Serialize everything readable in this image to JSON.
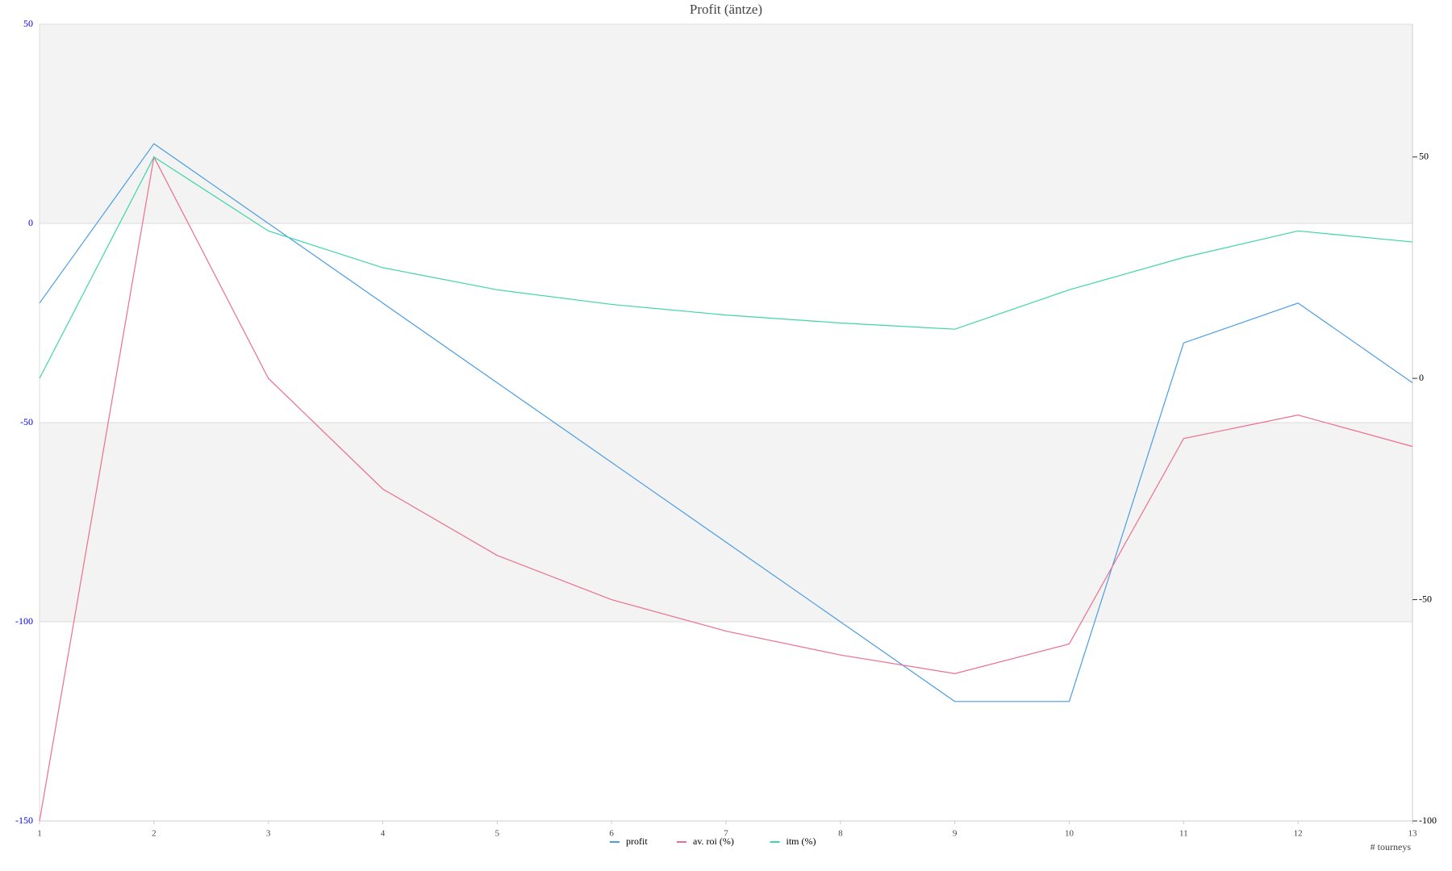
{
  "chart_data": {
    "type": "line",
    "title": "Profit  (äntze)",
    "xlabel": "# tourneys",
    "x": [
      1,
      2,
      3,
      4,
      5,
      6,
      7,
      8,
      9,
      10,
      11,
      12,
      13
    ],
    "xlim": [
      1,
      13
    ],
    "xticks": [
      1,
      2,
      3,
      4,
      5,
      6,
      7,
      8,
      9,
      10,
      11,
      12,
      13
    ],
    "ylim": [
      -150,
      50
    ],
    "yticks": [
      -150,
      -100,
      -50,
      0,
      50
    ],
    "y2lim": [
      -100,
      80
    ],
    "y2ticks": [
      -100,
      -50,
      0,
      50
    ],
    "grid": "bands",
    "legend": "bottom",
    "series": [
      {
        "name": "profit",
        "color": "#4a9de3",
        "values": [
          -20,
          20,
          0,
          -20,
          -40,
          -60,
          -80,
          -100,
          -120,
          -120,
          -30,
          -20,
          -40
        ]
      },
      {
        "name": "av. roi (%)",
        "color": "#ec6f8e",
        "axis": "y2",
        "values": [
          -100,
          50,
          0,
          -25,
          -40,
          -50,
          -57.1,
          -62.5,
          -66.7,
          -60,
          -13.6,
          -8.3,
          -15.4
        ]
      },
      {
        "name": "itm (%)",
        "color": "#3ed6a6",
        "axis": "y2",
        "values": [
          0,
          50,
          33.3,
          25,
          20,
          16.7,
          14.3,
          12.5,
          11.1,
          20,
          27.3,
          33.3,
          30.8
        ]
      }
    ]
  }
}
